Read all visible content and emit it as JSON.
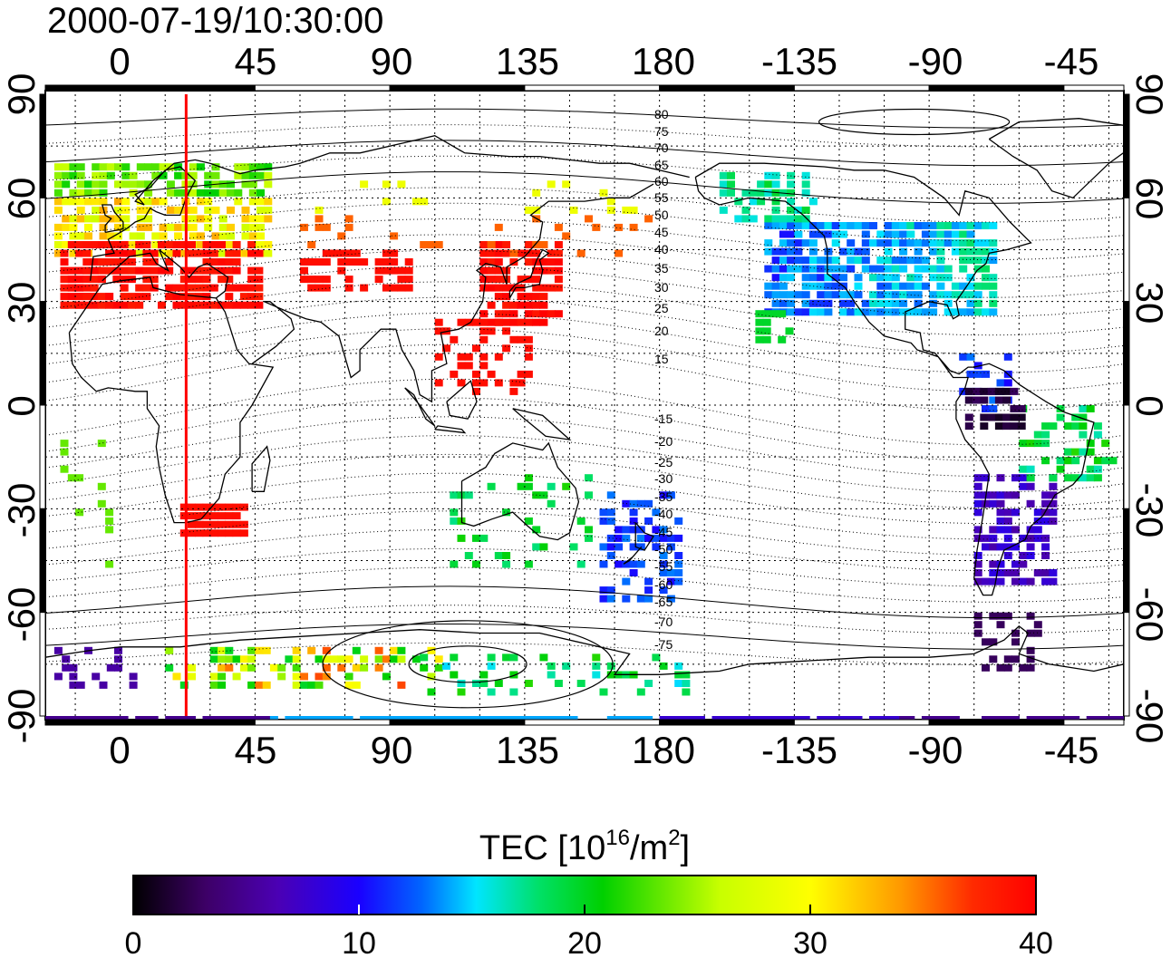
{
  "title": "2000-07-19/10:30:00",
  "colorbar": {
    "label_prefix": "TEC  [10",
    "label_sup1": "16",
    "label_mid": "/m",
    "label_sup2": "2",
    "label_suffix": "]",
    "ticks": [
      "0",
      "10",
      "20",
      "30",
      "40"
    ],
    "min": 0,
    "max": 40,
    "colors": [
      "#000000",
      "#3d0066",
      "#4b00b4",
      "#1a00ff",
      "#0066ff",
      "#00e5ff",
      "#00e066",
      "#00d000",
      "#c8ff00",
      "#ffff00",
      "#ff9900",
      "#ff2a00",
      "#ff0000"
    ]
  },
  "map": {
    "lon_top_labels": [
      "0",
      "45",
      "90",
      "135",
      "180",
      "-135",
      "-90",
      "-45"
    ],
    "lon_bottom_labels": [
      "0",
      "45",
      "90",
      "135",
      "180",
      "-135",
      "-90",
      "-45"
    ],
    "lat_left_labels": [
      "90",
      "60",
      "30",
      "0",
      "-30",
      "-60",
      "-90"
    ],
    "lat_right_labels": [
      "90",
      "60",
      "30",
      "0",
      "-30",
      "-60",
      "-90"
    ],
    "lon_ticks": [
      0,
      45,
      90,
      135,
      180,
      225,
      270,
      315
    ],
    "lat_ticks": [
      90,
      60,
      30,
      0,
      -30,
      -60,
      -90
    ],
    "lon_range": [
      -25,
      335
    ],
    "lat_range": [
      -90,
      90
    ],
    "marker_line_lon": 22,
    "marker_line_color": "#ff0000",
    "magnetic_lat_labels_north": [
      "80",
      "75",
      "70",
      "65",
      "60",
      "55",
      "50",
      "45",
      "40",
      "35",
      "30",
      "25",
      "20",
      "15"
    ],
    "magnetic_lat_labels_south": [
      "-15",
      "-20",
      "-25",
      "-30",
      "-35",
      "-40",
      "-45",
      "-50",
      "-55",
      "-60",
      "-65",
      "-70",
      "-75"
    ]
  }
}
